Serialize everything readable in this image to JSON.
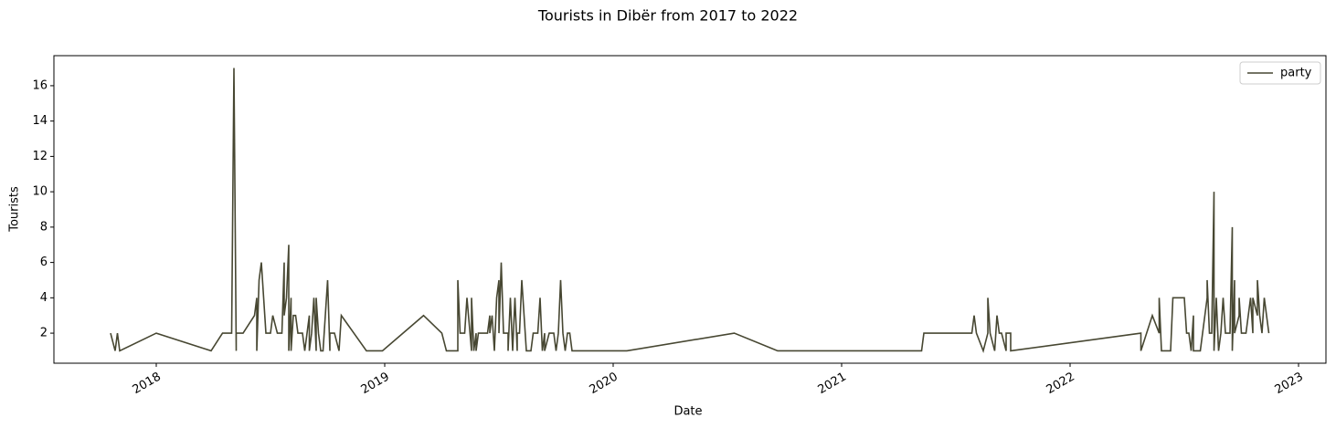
{
  "chart_data": {
    "type": "line",
    "title": "Tourists in Dibër from 2017 to 2022",
    "x_label": "Date",
    "y_label": "Tourists",
    "x": [
      2017.8,
      2017.82,
      2017.83,
      2017.84,
      2018.0,
      2018.24,
      2018.29,
      2018.33,
      2018.34,
      2018.35,
      2018.35,
      2018.38,
      2018.43,
      2018.44,
      2018.44,
      2018.45,
      2018.46,
      2018.48,
      2018.5,
      2018.51,
      2018.53,
      2018.55,
      2018.56,
      2018.56,
      2018.57,
      2018.58,
      2018.58,
      2018.59,
      2018.59,
      2018.6,
      2018.61,
      2018.62,
      2018.64,
      2018.65,
      2018.66,
      2018.67,
      2018.67,
      2018.68,
      2018.69,
      2018.7,
      2018.7,
      2018.71,
      2018.72,
      2018.73,
      2018.75,
      2018.76,
      2018.76,
      2018.78,
      2018.8,
      2018.81,
      2018.92,
      2018.99,
      2019.17,
      2019.25,
      2019.27,
      2019.32,
      2019.32,
      2019.33,
      2019.35,
      2019.36,
      2019.38,
      2019.38,
      2019.39,
      2019.4,
      2019.4,
      2019.41,
      2019.45,
      2019.46,
      2019.46,
      2019.47,
      2019.48,
      2019.49,
      2019.5,
      2019.5,
      2019.51,
      2019.52,
      2019.54,
      2019.54,
      2019.55,
      2019.56,
      2019.57,
      2019.58,
      2019.58,
      2019.59,
      2019.6,
      2019.61,
      2019.62,
      2019.64,
      2019.65,
      2019.67,
      2019.68,
      2019.69,
      2019.7,
      2019.7,
      2019.72,
      2019.74,
      2019.75,
      2019.76,
      2019.77,
      2019.78,
      2019.79,
      2019.8,
      2019.81,
      2019.82,
      2020.06,
      2020.53,
      2020.72,
      2021.35,
      2021.36,
      2021.57,
      2021.58,
      2021.59,
      2021.62,
      2021.64,
      2021.64,
      2021.65,
      2021.67,
      2021.68,
      2021.69,
      2021.7,
      2021.72,
      2021.72,
      2021.74,
      2021.74,
      2022.31,
      2022.31,
      2022.36,
      2022.39,
      2022.39,
      2022.4,
      2022.44,
      2022.45,
      2022.5,
      2022.51,
      2022.52,
      2022.53,
      2022.54,
      2022.54,
      2022.57,
      2022.58,
      2022.6,
      2022.6,
      2022.61,
      2022.62,
      2022.63,
      2022.63,
      2022.64,
      2022.65,
      2022.66,
      2022.67,
      2022.68,
      2022.7,
      2022.71,
      2022.71,
      2022.72,
      2022.72,
      2022.74,
      2022.74,
      2022.75,
      2022.77,
      2022.78,
      2022.79,
      2022.8,
      2022.8,
      2022.82,
      2022.82,
      2022.83,
      2022.84,
      2022.85,
      2022.86,
      2022.87
    ],
    "series": [
      {
        "name": "party",
        "color": "#474732",
        "values": [
          2,
          1,
          2,
          1,
          2,
          1,
          2,
          2,
          17,
          1,
          2,
          2,
          3,
          4,
          1,
          5,
          6,
          2,
          2,
          3,
          2,
          2,
          6,
          3,
          4,
          7,
          1,
          4,
          1,
          3,
          3,
          2,
          2,
          1,
          2,
          3,
          1,
          2,
          4,
          1,
          4,
          2,
          1,
          1,
          5,
          1,
          2,
          2,
          1,
          3,
          1,
          1,
          3,
          2,
          1,
          1,
          5,
          2,
          2,
          4,
          1,
          4,
          1,
          2,
          1,
          2,
          2,
          3,
          2,
          3,
          1,
          4,
          5,
          2,
          6,
          2,
          2,
          1,
          4,
          1,
          4,
          1,
          2,
          2,
          5,
          3,
          1,
          1,
          2,
          2,
          4,
          1,
          2,
          1,
          2,
          2,
          1,
          2,
          5,
          2,
          1,
          2,
          2,
          1,
          1,
          2,
          1,
          1,
          2,
          2,
          3,
          2,
          1,
          2,
          4,
          2,
          1,
          3,
          2,
          2,
          1,
          2,
          2,
          1,
          2,
          1,
          3,
          2,
          4,
          1,
          1,
          4,
          4,
          2,
          2,
          1,
          3,
          1,
          1,
          2,
          4,
          5,
          2,
          2,
          10,
          1,
          4,
          1,
          2,
          4,
          2,
          2,
          8,
          1,
          5,
          2,
          3,
          4,
          2,
          2,
          3,
          4,
          2,
          4,
          3,
          5,
          3,
          2,
          4,
          3,
          2
        ]
      }
    ],
    "xlim": [
      2017.552,
      2023.12
    ],
    "xticks": [
      2018,
      2019,
      2020,
      2021,
      2022,
      2023
    ],
    "ylim": [
      0.3,
      17.7
    ],
    "yticks": [
      2,
      4,
      6,
      8,
      10,
      12,
      14,
      16
    ],
    "legend": "upper right"
  }
}
